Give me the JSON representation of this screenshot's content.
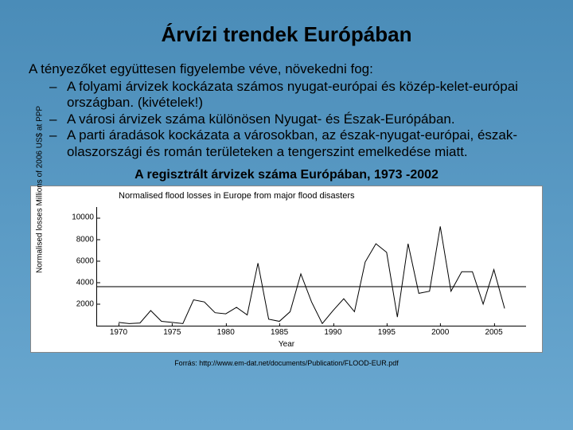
{
  "title": "Árvízi trendek Európában",
  "intro": "A tényezőket együttesen figyelembe véve, növekedni fog:",
  "bullets": [
    "A folyami árvizek kockázata számos nyugat-európai és közép-kelet-európai országban. (kivételek!)",
    "A városi árvizek száma különösen Nyugat- és Észak-Európában.",
    "A parti áradások kockázata a városokban, az észak-nyugat-európai, észak-olaszországi és román területeken a tengerszint emelkedése miatt."
  ],
  "subtitle": "A regisztrált árvizek száma Európában, 1973 -2002",
  "chart": {
    "title": "Normalised flood losses in Europe from major flood disasters",
    "ylabel": "Normalised losses  Millions of 2006 US$ at PPP",
    "xlabel": "Year",
    "ylim": [
      0,
      11000
    ],
    "yticks": [
      2000,
      4000,
      6000,
      8000,
      10000
    ],
    "xlim": [
      1968,
      2008
    ],
    "xticks": [
      1970,
      1975,
      1980,
      1985,
      1990,
      1995,
      2000,
      2005
    ],
    "mean_value": 3700,
    "series": [
      {
        "x": 1970,
        "y": 300
      },
      {
        "x": 1971,
        "y": 200
      },
      {
        "x": 1972,
        "y": 250
      },
      {
        "x": 1973,
        "y": 1400
      },
      {
        "x": 1974,
        "y": 400
      },
      {
        "x": 1975,
        "y": 300
      },
      {
        "x": 1976,
        "y": 200
      },
      {
        "x": 1977,
        "y": 2400
      },
      {
        "x": 1978,
        "y": 2200
      },
      {
        "x": 1979,
        "y": 1200
      },
      {
        "x": 1980,
        "y": 1100
      },
      {
        "x": 1981,
        "y": 1700
      },
      {
        "x": 1982,
        "y": 1000
      },
      {
        "x": 1983,
        "y": 5800
      },
      {
        "x": 1984,
        "y": 600
      },
      {
        "x": 1985,
        "y": 400
      },
      {
        "x": 1986,
        "y": 1300
      },
      {
        "x": 1987,
        "y": 4800
      },
      {
        "x": 1988,
        "y": 2200
      },
      {
        "x": 1989,
        "y": 200
      },
      {
        "x": 1990,
        "y": 1400
      },
      {
        "x": 1991,
        "y": 2500
      },
      {
        "x": 1992,
        "y": 1300
      },
      {
        "x": 1993,
        "y": 5900
      },
      {
        "x": 1994,
        "y": 7600
      },
      {
        "x": 1995,
        "y": 6800
      },
      {
        "x": 1996,
        "y": 800
      },
      {
        "x": 1997,
        "y": 7600
      },
      {
        "x": 1998,
        "y": 3000
      },
      {
        "x": 1999,
        "y": 3200
      },
      {
        "x": 2000,
        "y": 9200
      },
      {
        "x": 2001,
        "y": 3200
      },
      {
        "x": 2002,
        "y": 5000
      },
      {
        "x": 2003,
        "y": 5000
      },
      {
        "x": 2004,
        "y": 2000
      },
      {
        "x": 2005,
        "y": 5200
      },
      {
        "x": 2006,
        "y": 1600
      }
    ],
    "line_color": "#000000",
    "background": "#ffffff"
  },
  "source": "Forrás: http://www.em-dat.net/documents/Publication/FLOOD-EUR.pdf"
}
